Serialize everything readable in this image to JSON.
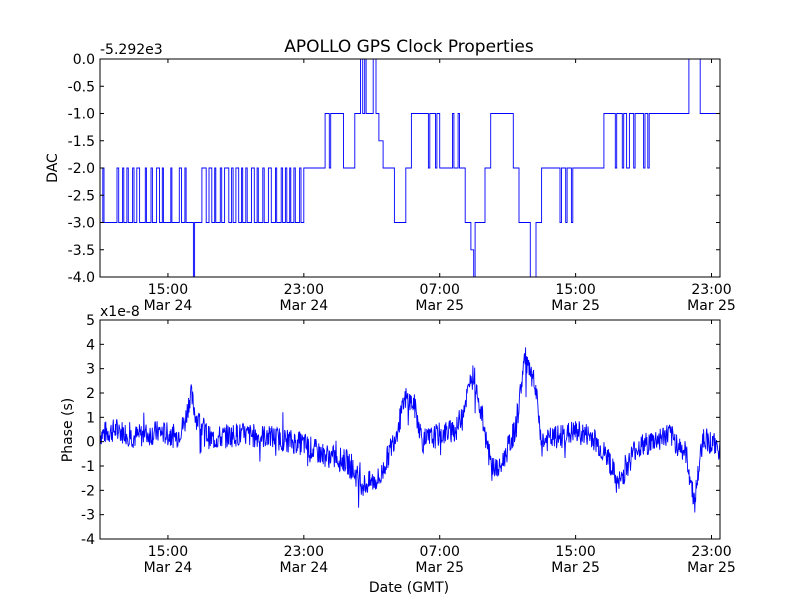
{
  "figure": {
    "title": "APOLLO GPS Clock Properties",
    "xlabel": "Date (GMT)"
  },
  "chart_data": [
    {
      "type": "line",
      "ylabel": "DAC",
      "offset_label": "-5.292e3",
      "ylim": [
        -4.0,
        0.0
      ],
      "yticks": [
        "0.0",
        "-0.5",
        "-1.0",
        "-1.5",
        "-2.0",
        "-2.5",
        "-3.0",
        "-3.5",
        "-4.0"
      ],
      "xticks": [
        {
          "time": "15:00",
          "date": "Mar 24"
        },
        {
          "time": "23:00",
          "date": "Mar 24"
        },
        {
          "time": "07:00",
          "date": "Mar 25"
        },
        {
          "time": "15:00",
          "date": "Mar 25"
        },
        {
          "time": "23:00",
          "date": "Mar 25"
        }
      ],
      "xlim": [
        "Mar 24 11:00",
        "Mar 25 23:30"
      ],
      "color": "#0000ff",
      "series": [
        {
          "levels": [
            {
              "t": "Mar 24 11:00",
              "v": -3
            },
            {
              "t": "Mar 24 11:10",
              "v": -2
            },
            {
              "t": "Mar 24 11:14",
              "v": -3
            },
            {
              "t": "Mar 24 12:00",
              "v": -2
            },
            {
              "t": "Mar 24 12:06",
              "v": -3
            },
            {
              "t": "Mar 24 12:20",
              "v": -2
            },
            {
              "t": "Mar 24 12:24",
              "v": -3
            },
            {
              "t": "Mar 24 12:35",
              "v": -2
            },
            {
              "t": "Mar 24 12:40",
              "v": -3
            },
            {
              "t": "Mar 24 12:55",
              "v": -2
            },
            {
              "t": "Mar 24 13:00",
              "v": -3
            },
            {
              "t": "Mar 24 13:10",
              "v": -2
            },
            {
              "t": "Mar 24 13:20",
              "v": -3
            },
            {
              "t": "Mar 24 13:40",
              "v": -2
            },
            {
              "t": "Mar 24 13:44",
              "v": -3
            },
            {
              "t": "Mar 24 14:00",
              "v": -2
            },
            {
              "t": "Mar 24 14:05",
              "v": -3
            },
            {
              "t": "Mar 24 14:20",
              "v": -2
            },
            {
              "t": "Mar 24 14:30",
              "v": -3
            },
            {
              "t": "Mar 24 14:40",
              "v": -2
            },
            {
              "t": "Mar 24 14:44",
              "v": -3
            },
            {
              "t": "Mar 24 15:10",
              "v": -2
            },
            {
              "t": "Mar 24 15:14",
              "v": -3
            },
            {
              "t": "Mar 24 15:40",
              "v": -2
            },
            {
              "t": "Mar 24 15:48",
              "v": -3
            },
            {
              "t": "Mar 24 16:00",
              "v": -2
            },
            {
              "t": "Mar 24 16:04",
              "v": -3
            },
            {
              "t": "Mar 24 16:30",
              "v": -4
            },
            {
              "t": "Mar 24 16:34",
              "v": -3
            },
            {
              "t": "Mar 24 17:00",
              "v": -2
            },
            {
              "t": "Mar 24 17:15",
              "v": -3
            },
            {
              "t": "Mar 24 17:25",
              "v": -2
            },
            {
              "t": "Mar 24 17:35",
              "v": -3
            },
            {
              "t": "Mar 24 17:45",
              "v": -2
            },
            {
              "t": "Mar 24 17:49",
              "v": -3
            },
            {
              "t": "Mar 24 18:05",
              "v": -2
            },
            {
              "t": "Mar 24 18:10",
              "v": -3
            },
            {
              "t": "Mar 24 18:20",
              "v": -2
            },
            {
              "t": "Mar 24 18:35",
              "v": -3
            },
            {
              "t": "Mar 24 18:45",
              "v": -2
            },
            {
              "t": "Mar 24 18:50",
              "v": -3
            },
            {
              "t": "Mar 24 19:00",
              "v": -2
            },
            {
              "t": "Mar 24 19:10",
              "v": -3
            },
            {
              "t": "Mar 24 19:20",
              "v": -2
            },
            {
              "t": "Mar 24 19:24",
              "v": -3
            },
            {
              "t": "Mar 24 19:35",
              "v": -2
            },
            {
              "t": "Mar 24 19:40",
              "v": -3
            },
            {
              "t": "Mar 24 19:55",
              "v": -2
            },
            {
              "t": "Mar 24 20:05",
              "v": -3
            },
            {
              "t": "Mar 24 20:15",
              "v": -2
            },
            {
              "t": "Mar 24 20:19",
              "v": -3
            },
            {
              "t": "Mar 24 20:35",
              "v": -2
            },
            {
              "t": "Mar 24 20:40",
              "v": -3
            },
            {
              "t": "Mar 24 20:55",
              "v": -2
            },
            {
              "t": "Mar 24 21:05",
              "v": -3
            },
            {
              "t": "Mar 24 21:20",
              "v": -2
            },
            {
              "t": "Mar 24 21:24",
              "v": -3
            },
            {
              "t": "Mar 24 21:40",
              "v": -2
            },
            {
              "t": "Mar 24 21:45",
              "v": -3
            },
            {
              "t": "Mar 24 21:55",
              "v": -2
            },
            {
              "t": "Mar 24 22:00",
              "v": -3
            },
            {
              "t": "Mar 24 22:10",
              "v": -2
            },
            {
              "t": "Mar 24 22:14",
              "v": -3
            },
            {
              "t": "Mar 24 22:25",
              "v": -2
            },
            {
              "t": "Mar 24 22:30",
              "v": -3
            },
            {
              "t": "Mar 24 22:45",
              "v": -2
            },
            {
              "t": "Mar 24 22:50",
              "v": -3
            },
            {
              "t": "Mar 24 23:00",
              "v": -2
            },
            {
              "t": "Mar 25 00:15",
              "v": -1
            },
            {
              "t": "Mar 25 00:30",
              "v": -2
            },
            {
              "t": "Mar 25 00:35",
              "v": -1
            },
            {
              "t": "Mar 25 01:20",
              "v": -2
            },
            {
              "t": "Mar 25 02:00",
              "v": -1
            },
            {
              "t": "Mar 25 02:20",
              "v": 0
            },
            {
              "t": "Mar 25 02:28",
              "v": -1
            },
            {
              "t": "Mar 25 02:35",
              "v": 0
            },
            {
              "t": "Mar 25 02:40",
              "v": -1
            },
            {
              "t": "Mar 25 03:05",
              "v": 0
            },
            {
              "t": "Mar 25 03:15",
              "v": -1
            },
            {
              "t": "Mar 25 03:25",
              "v": -1.5
            },
            {
              "t": "Mar 25 03:40",
              "v": -2
            },
            {
              "t": "Mar 25 04:20",
              "v": -3
            },
            {
              "t": "Mar 25 05:00",
              "v": -2
            },
            {
              "t": "Mar 25 05:20",
              "v": -1
            },
            {
              "t": "Mar 25 06:20",
              "v": -2
            },
            {
              "t": "Mar 25 06:25",
              "v": -1
            },
            {
              "t": "Mar 25 06:45",
              "v": -2
            },
            {
              "t": "Mar 25 06:50",
              "v": -1
            },
            {
              "t": "Mar 25 07:00",
              "v": -2
            },
            {
              "t": "Mar 25 07:45",
              "v": -1
            },
            {
              "t": "Mar 25 07:50",
              "v": -2
            },
            {
              "t": "Mar 25 08:05",
              "v": -1
            },
            {
              "t": "Mar 25 08:10",
              "v": -2
            },
            {
              "t": "Mar 25 08:30",
              "v": -3
            },
            {
              "t": "Mar 25 08:50",
              "v": -3.5
            },
            {
              "t": "Mar 25 09:00",
              "v": -4
            },
            {
              "t": "Mar 25 09:05",
              "v": -3
            },
            {
              "t": "Mar 25 09:40",
              "v": -2
            },
            {
              "t": "Mar 25 10:00",
              "v": -1
            },
            {
              "t": "Mar 25 11:20",
              "v": -2
            },
            {
              "t": "Mar 25 11:40",
              "v": -3
            },
            {
              "t": "Mar 25 12:20",
              "v": -4
            },
            {
              "t": "Mar 25 12:35",
              "v": -4
            },
            {
              "t": "Mar 25 12:40",
              "v": -3
            },
            {
              "t": "Mar 25 13:00",
              "v": -2
            },
            {
              "t": "Mar 25 14:05",
              "v": -3
            },
            {
              "t": "Mar 25 14:10",
              "v": -2
            },
            {
              "t": "Mar 25 14:25",
              "v": -3
            },
            {
              "t": "Mar 25 14:30",
              "v": -2
            },
            {
              "t": "Mar 25 14:45",
              "v": -3
            },
            {
              "t": "Mar 25 14:50",
              "v": -2
            },
            {
              "t": "Mar 25 16:40",
              "v": -1
            },
            {
              "t": "Mar 25 17:20",
              "v": -2
            },
            {
              "t": "Mar 25 17:25",
              "v": -1
            },
            {
              "t": "Mar 25 17:45",
              "v": -2
            },
            {
              "t": "Mar 25 17:50",
              "v": -1
            },
            {
              "t": "Mar 25 18:00",
              "v": -2
            },
            {
              "t": "Mar 25 18:10",
              "v": -1
            },
            {
              "t": "Mar 25 18:25",
              "v": -2
            },
            {
              "t": "Mar 25 18:30",
              "v": -1
            },
            {
              "t": "Mar 25 19:00",
              "v": -2
            },
            {
              "t": "Mar 25 19:05",
              "v": -1
            },
            {
              "t": "Mar 25 19:15",
              "v": -2
            },
            {
              "t": "Mar 25 19:20",
              "v": -1
            },
            {
              "t": "Mar 25 21:40",
              "v": 0
            },
            {
              "t": "Mar 25 22:20",
              "v": -1
            },
            {
              "t": "Mar 25 23:30",
              "v": -1
            }
          ]
        }
      ]
    },
    {
      "type": "line",
      "ylabel": "Phase (s)",
      "offset_label": "x1e-8",
      "ylim": [
        -4,
        5
      ],
      "yticks": [
        "5",
        "4",
        "3",
        "2",
        "1",
        "0",
        "-1",
        "-2",
        "-3",
        "-4"
      ],
      "xticks": [
        {
          "time": "15:00",
          "date": "Mar 24"
        },
        {
          "time": "23:00",
          "date": "Mar 24"
        },
        {
          "time": "07:00",
          "date": "Mar 25"
        },
        {
          "time": "15:00",
          "date": "Mar 25"
        },
        {
          "time": "23:00",
          "date": "Mar 25"
        }
      ],
      "xlim": [
        "Mar 24 11:00",
        "Mar 25 23:30"
      ],
      "color": "#0000ff",
      "series": [
        {
          "trend": [
            {
              "t": "Mar 24 11:00",
              "v": 0.3
            },
            {
              "t": "Mar 24 12:00",
              "v": 0.5
            },
            {
              "t": "Mar 24 13:00",
              "v": 0.2
            },
            {
              "t": "Mar 24 14:30",
              "v": 0.4
            },
            {
              "t": "Mar 24 15:30",
              "v": 0.2
            },
            {
              "t": "Mar 24 16:00",
              "v": 0.8
            },
            {
              "t": "Mar 24 16:20",
              "v": 2.0
            },
            {
              "t": "Mar 24 16:40",
              "v": 1.0
            },
            {
              "t": "Mar 24 17:30",
              "v": 0.1
            },
            {
              "t": "Mar 24 19:00",
              "v": 0.3
            },
            {
              "t": "Mar 24 21:00",
              "v": 0.2
            },
            {
              "t": "Mar 24 23:00",
              "v": -0.1
            },
            {
              "t": "Mar 25 00:00",
              "v": -0.5
            },
            {
              "t": "Mar 25 01:30",
              "v": -0.8
            },
            {
              "t": "Mar 25 02:30",
              "v": -1.8
            },
            {
              "t": "Mar 25 03:30",
              "v": -1.5
            },
            {
              "t": "Mar 25 04:30",
              "v": 0.5
            },
            {
              "t": "Mar 25 05:00",
              "v": 1.8
            },
            {
              "t": "Mar 25 05:30",
              "v": 1.5
            },
            {
              "t": "Mar 25 06:00",
              "v": 0.0
            },
            {
              "t": "Mar 25 07:00",
              "v": 0.3
            },
            {
              "t": "Mar 25 08:00",
              "v": 0.5
            },
            {
              "t": "Mar 25 09:00",
              "v": 2.8
            },
            {
              "t": "Mar 25 09:30",
              "v": 1.0
            },
            {
              "t": "Mar 25 10:00",
              "v": -0.9
            },
            {
              "t": "Mar 25 10:30",
              "v": -1.2
            },
            {
              "t": "Mar 25 11:30",
              "v": 0.6
            },
            {
              "t": "Mar 25 12:00",
              "v": 3.5
            },
            {
              "t": "Mar 25 12:40",
              "v": 2.0
            },
            {
              "t": "Mar 25 13:00",
              "v": 0.0
            },
            {
              "t": "Mar 25 14:00",
              "v": 0.2
            },
            {
              "t": "Mar 25 15:00",
              "v": 0.4
            },
            {
              "t": "Mar 25 16:00",
              "v": 0.2
            },
            {
              "t": "Mar 25 17:00",
              "v": -0.8
            },
            {
              "t": "Mar 25 17:30",
              "v": -1.8
            },
            {
              "t": "Mar 25 18:30",
              "v": -0.3
            },
            {
              "t": "Mar 25 19:30",
              "v": 0.0
            },
            {
              "t": "Mar 25 20:30",
              "v": 0.3
            },
            {
              "t": "Mar 25 21:30",
              "v": -0.5
            },
            {
              "t": "Mar 25 22:00",
              "v": -2.5
            },
            {
              "t": "Mar 25 22:30",
              "v": 0.2
            },
            {
              "t": "Mar 25 23:30",
              "v": -0.3
            }
          ],
          "noise_amplitude": 0.5
        }
      ]
    }
  ]
}
